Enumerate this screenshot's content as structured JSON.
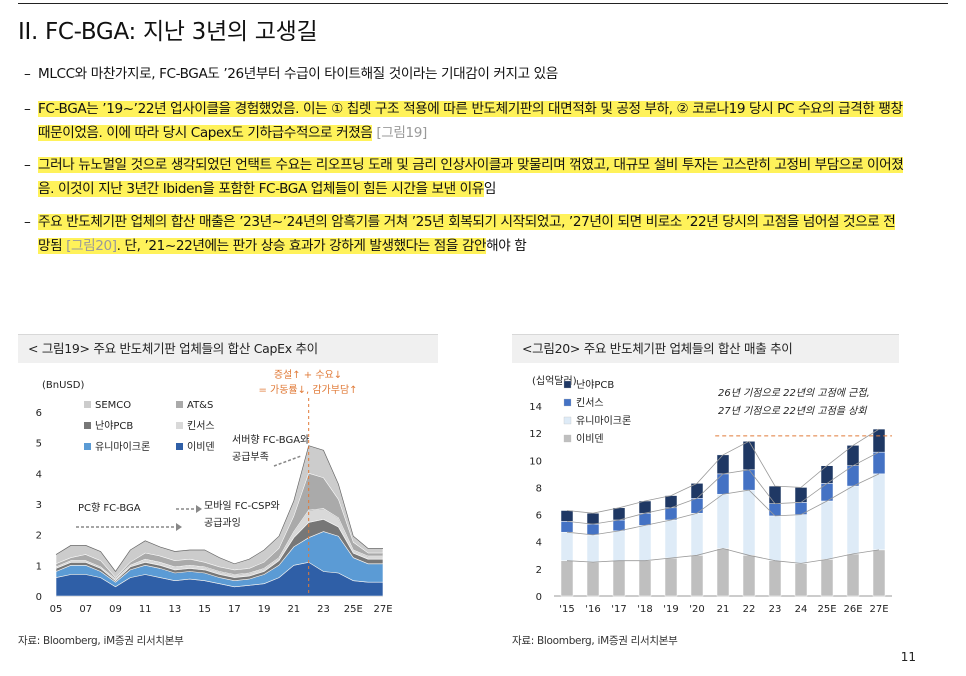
{
  "title": "II. FC-BGA: 지난 3년의 고생길",
  "bullets": [
    {
      "dash": "–",
      "plain": "MLCC와 마찬가지로, FC-BGA도 ’26년부터 수급이 타이트해질 것이라는 기대감이 커지고 있음"
    },
    {
      "dash": "–",
      "hl": "FC-BGA는 ’19~’22년 업사이클을 경험했었음. 이는 ① 칩렛 구조 적용에 따른 반도체기판의 대면적화 및 공정 부하, ② 코로나19 당시 PC 수요의 급격한 팽창 때문이었음. 이에 따라 당시 Capex도 기하급수적으로 커졌음",
      "ref": " [그림19]"
    },
    {
      "dash": "–",
      "hl": "그러나 뉴노멀일 것으로 생각되었던 언택트 수요는 리오프닝 도래 및 금리 인상사이클과 맞물리며 꺾였고, 대규모 설비 투자는 고스란히 고정비 부담으로 이어졌음. 이것이 지난 3년간 Ibiden을 포함한 FC-BGA 업체들이 힘든 시간을 보낸 이유",
      "tail": "임"
    },
    {
      "dash": "–",
      "hl": "주요 반도체기판 업체의 합산 매출은 ’23년~’24년의 암흑기를 거쳐 ’25년 회복되기 시작되었고, ’27년이 되면 비로소 ’22년 당시의 고점을 넘어설 것으로 전망됨",
      "ref": " [그림20]",
      "hl2": ". 단, ’21~22년에는 판가 상승 효과가 강하게 발생했다는 점을 감안",
      "tail": "해야 함"
    }
  ],
  "chart19": {
    "header": "< 그림19> 주요 반도체기판 업체들의 합산 CapEx 추이",
    "unit": "(BnUSD)",
    "annotation_top_1": "증설↑ + 수요↓",
    "annotation_top_2": "= 가동률↓, 감가부담↑",
    "annotation_server_1": "서버향 FC-BGA와",
    "annotation_server_2": "공급부족",
    "annotation_pc": "PC향 FC-BGA",
    "annotation_mobile_1": "모바일 FC-CSP와",
    "annotation_mobile_2": "공급과잉",
    "source": "자료: Bloomberg, iM증권 리서치본부",
    "colors": {
      "SEMCO": "#cccccc",
      "AT&S": "#aaaaaa",
      "난야PCB": "#777777",
      "킨서스": "#d9d9d9",
      "유니마이크론": "#5b9bd5",
      "이비덴": "#2f5fa7",
      "annotation": "#e07b39"
    }
  },
  "chart20": {
    "header": "<그림20> 주요 반도체기판 업체들의 합산 매출 추이",
    "unit": "(십억달러)",
    "annotation_1": "26년 기점으로 22년의 고점에 근접,",
    "annotation_2": "27년 기점으로 22년의 고점을 상회",
    "source": "자료: Bloomberg, iM증권 리서치본부",
    "colors": {
      "난야PCB": "#1f3864",
      "킨서스": "#4472c4",
      "유니마이크론": "#deebf7",
      "이비덴": "#bfbfbf",
      "peak_line": "#e07b39"
    }
  },
  "chart_data": [
    {
      "type": "area",
      "title": "주요 반도체기판 업체들의 합산 CapEx 추이",
      "ylabel": "(BnUSD)",
      "ylim": [
        0,
        6
      ],
      "yticks": [
        "0",
        "1",
        "2",
        "3",
        "4",
        "5",
        "6"
      ],
      "x_tick_labels": [
        "05",
        "07",
        "09",
        "11",
        "13",
        "15",
        "17",
        "19",
        "21",
        "23",
        "25E",
        "27E"
      ],
      "x": [
        "05",
        "06",
        "07",
        "08",
        "09",
        "10",
        "11",
        "12",
        "13",
        "14",
        "15",
        "16",
        "17",
        "18",
        "19",
        "20",
        "21",
        "22",
        "23",
        "24",
        "25E",
        "26E",
        "27E"
      ],
      "legend": [
        "SEMCO",
        "AT&S",
        "난야PCB",
        "킨서스",
        "유니마이크론",
        "이비덴"
      ],
      "series": [
        {
          "name": "이비덴",
          "values": [
            0.6,
            0.7,
            0.7,
            0.6,
            0.3,
            0.6,
            0.7,
            0.6,
            0.5,
            0.55,
            0.5,
            0.4,
            0.3,
            0.35,
            0.4,
            0.6,
            1.0,
            1.1,
            0.8,
            0.75,
            0.5,
            0.45,
            0.45
          ]
        },
        {
          "name": "유니마이크론",
          "values": [
            0.2,
            0.3,
            0.3,
            0.2,
            0.15,
            0.25,
            0.3,
            0.3,
            0.25,
            0.25,
            0.25,
            0.2,
            0.2,
            0.2,
            0.3,
            0.4,
            0.6,
            0.8,
            1.3,
            1.2,
            0.75,
            0.6,
            0.6
          ]
        },
        {
          "name": "난야PCB",
          "values": [
            0.1,
            0.1,
            0.1,
            0.1,
            0.05,
            0.1,
            0.1,
            0.1,
            0.1,
            0.1,
            0.1,
            0.1,
            0.1,
            0.1,
            0.1,
            0.15,
            0.3,
            0.5,
            0.4,
            0.3,
            0.15,
            0.15,
            0.15
          ]
        },
        {
          "name": "킨서스",
          "values": [
            0.05,
            0.05,
            0.05,
            0.05,
            0.05,
            0.05,
            0.1,
            0.1,
            0.1,
            0.1,
            0.1,
            0.1,
            0.1,
            0.1,
            0.1,
            0.1,
            0.2,
            0.4,
            0.35,
            0.3,
            0.1,
            0.1,
            0.1
          ]
        },
        {
          "name": "AT&S",
          "values": [
            0.1,
            0.1,
            0.2,
            0.2,
            0.05,
            0.1,
            0.2,
            0.2,
            0.2,
            0.2,
            0.15,
            0.15,
            0.15,
            0.15,
            0.2,
            0.3,
            0.5,
            1.2,
            1.0,
            0.6,
            0.25,
            0.1,
            0.1
          ]
        },
        {
          "name": "SEMCO",
          "values": [
            0.3,
            0.4,
            0.3,
            0.3,
            0.2,
            0.4,
            0.4,
            0.3,
            0.3,
            0.3,
            0.4,
            0.3,
            0.2,
            0.3,
            0.4,
            0.4,
            0.5,
            0.9,
            0.9,
            0.5,
            0.2,
            0.15,
            0.15
          ]
        }
      ]
    },
    {
      "type": "bar",
      "title": "주요 반도체기판 업체들의 합산 매출 추이",
      "ylabel": "(십억달러)",
      "ylim": [
        0,
        14
      ],
      "yticks": [
        "0",
        "2",
        "4",
        "6",
        "8",
        "10",
        "12",
        "14"
      ],
      "categories": [
        "'15",
        "'16",
        "'17",
        "'18",
        "'19",
        "'20",
        "21",
        "22",
        "23",
        "24",
        "25E",
        "26E",
        "27E"
      ],
      "legend": [
        "난야PCB",
        "킨서스",
        "유니마이크론",
        "이비덴"
      ],
      "series": [
        {
          "name": "이비덴",
          "values": [
            2.6,
            2.5,
            2.6,
            2.6,
            2.8,
            3.0,
            3.5,
            3.0,
            2.6,
            2.4,
            2.7,
            3.1,
            3.4
          ]
        },
        {
          "name": "유니마이크론",
          "values": [
            2.1,
            2.0,
            2.2,
            2.6,
            2.8,
            3.1,
            4.0,
            4.8,
            3.3,
            3.6,
            4.3,
            5.0,
            5.6
          ]
        },
        {
          "name": "킨서스",
          "values": [
            0.8,
            0.8,
            0.8,
            0.9,
            0.9,
            1.1,
            1.5,
            1.5,
            0.9,
            0.9,
            1.3,
            1.5,
            1.6
          ]
        },
        {
          "name": "난야PCB",
          "values": [
            0.8,
            0.8,
            0.9,
            0.9,
            0.9,
            1.1,
            1.4,
            2.1,
            1.3,
            1.1,
            1.3,
            1.5,
            1.7
          ]
        }
      ],
      "reference_line": 11.8
    }
  ],
  "page_number": "11"
}
